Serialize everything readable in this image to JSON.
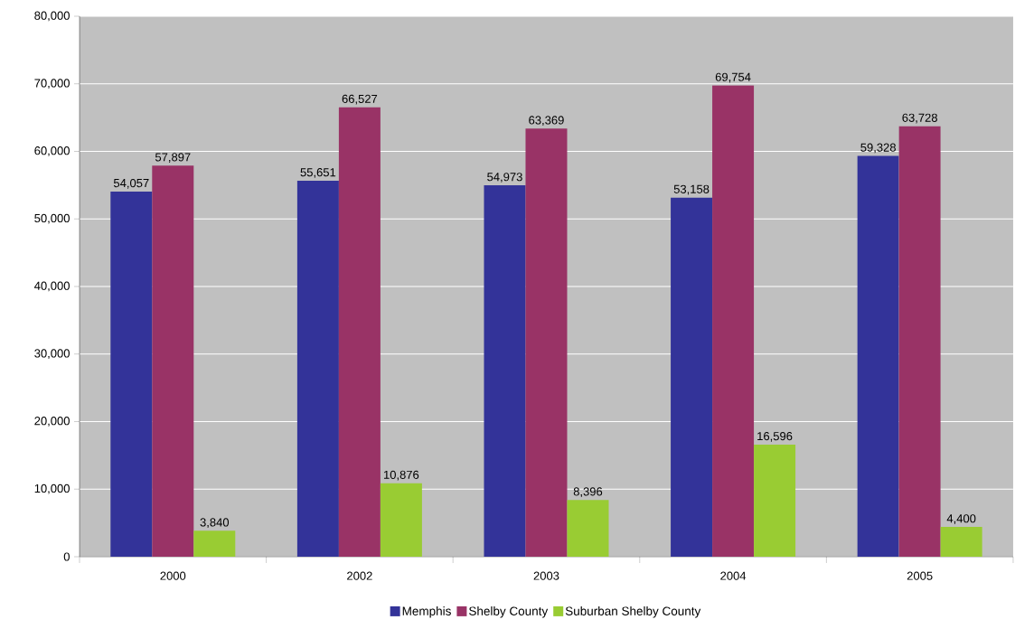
{
  "chart_data": {
    "type": "bar",
    "categories": [
      "2000",
      "2002",
      "2003",
      "2004",
      "2005"
    ],
    "series": [
      {
        "name": "Memphis",
        "color": "#333399",
        "values": [
          54057,
          55651,
          54973,
          53158,
          59328
        ],
        "value_labels": [
          "54,057",
          "55,651",
          "54,973",
          "53,158",
          "59,328"
        ]
      },
      {
        "name": "Shelby County",
        "color": "#993366",
        "values": [
          57897,
          66527,
          63369,
          69754,
          63728
        ],
        "value_labels": [
          "57,897",
          "66,527",
          "63,369",
          "69,754",
          "63,728"
        ]
      },
      {
        "name": "Suburban Shelby County",
        "color": "#99cc33",
        "values": [
          3840,
          10876,
          8396,
          16596,
          4400
        ],
        "value_labels": [
          "3,840",
          "10,876",
          "8,396",
          "16,596",
          "4,400"
        ]
      }
    ],
    "ylim": [
      0,
      80000
    ],
    "yticks": [
      {
        "value": 0,
        "label": "0"
      },
      {
        "value": 10000,
        "label": "10,000"
      },
      {
        "value": 20000,
        "label": "20,000"
      },
      {
        "value": 30000,
        "label": "30,000"
      },
      {
        "value": 40000,
        "label": "40,000"
      },
      {
        "value": 50000,
        "label": "50,000"
      },
      {
        "value": 60000,
        "label": "60,000"
      },
      {
        "value": 70000,
        "label": "70,000"
      },
      {
        "value": 80000,
        "label": "80,000"
      }
    ],
    "grid": "y",
    "legend": "bottom"
  }
}
